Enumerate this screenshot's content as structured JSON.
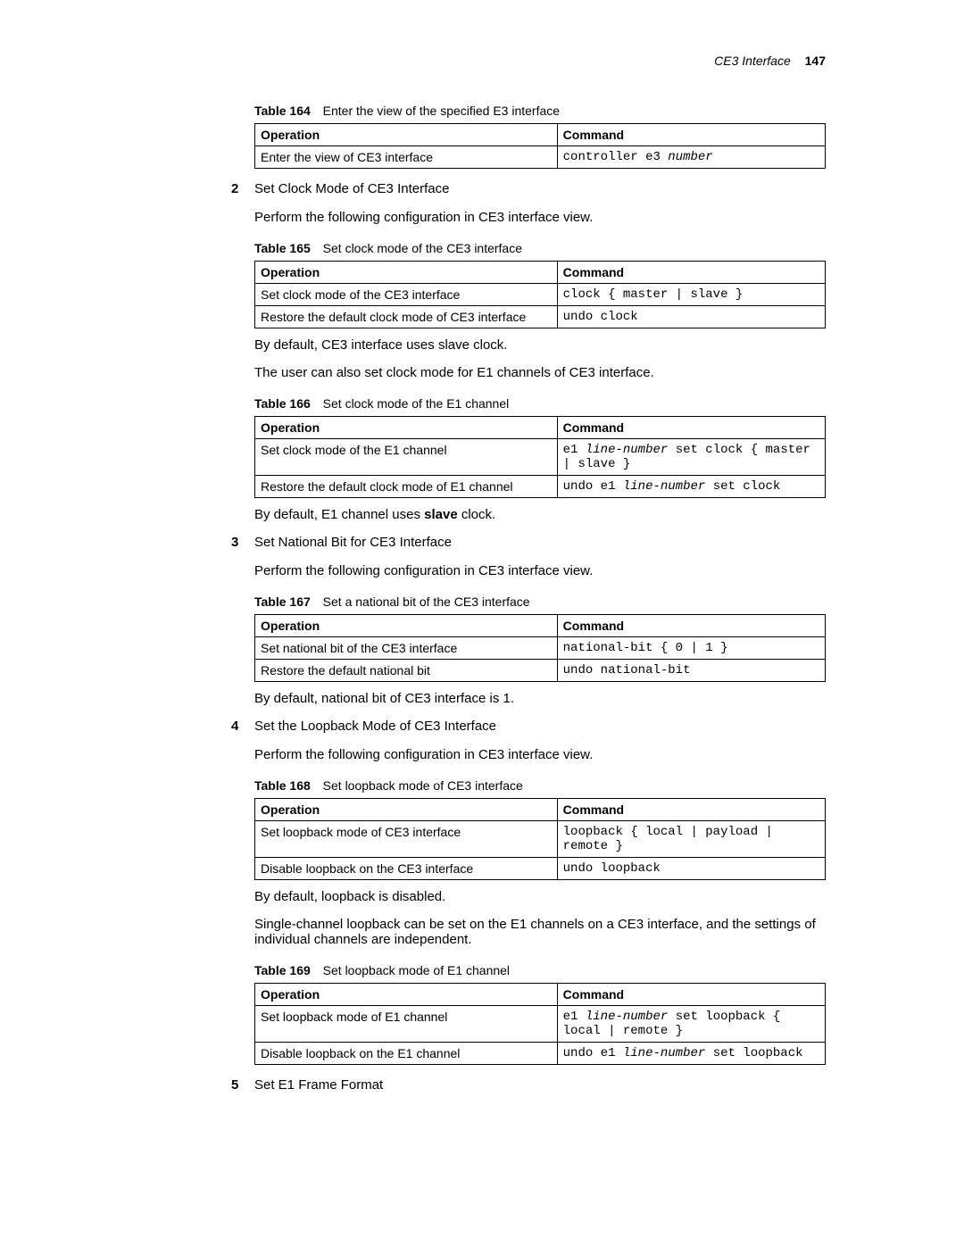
{
  "header": {
    "breadcrumb": "CE3 Interface",
    "pagenum": "147"
  },
  "text_color": "#000000",
  "background_color": "#ffffff",
  "border_color": "#000000",
  "font_sizes": {
    "body": 15,
    "table": 14,
    "caption": 14,
    "header": 14
  },
  "table_col_widths": {
    "operation_pct": 53,
    "command_pct": 47
  },
  "section2": {
    "num": "2",
    "title": "Set Clock Mode of CE3 Interface",
    "intro": "Perform the following configuration in CE3 interface view.",
    "default1": "By default, CE3 interface uses slave clock.",
    "extra": "The user can also set clock mode for E1 channels of CE3 interface.",
    "default2_pre": "By default, E1 channel uses ",
    "default2_bold": "slave",
    "default2_post": " clock."
  },
  "section3": {
    "num": "3",
    "title": "Set National Bit for CE3 Interface",
    "intro": "Perform the following configuration in CE3 interface view.",
    "default": "By default, national bit of CE3 interface is 1."
  },
  "section4": {
    "num": "4",
    "title": "Set the Loopback Mode of CE3 Interface",
    "intro": "Perform the following configuration in CE3 interface view.",
    "default": "By default, loopback is disabled.",
    "extra": "Single-channel loopback can be set on the E1 channels on a CE3 interface, and the settings of individual channels are independent."
  },
  "section5": {
    "num": "5",
    "title": "Set E1 Frame Format"
  },
  "table164": {
    "label": "Table 164",
    "title": "Enter the view of the specified E3 interface",
    "h1": "Operation",
    "h2": "Command",
    "r1c1": "Enter the view of CE3 interface",
    "r1c2a": "controller e3 ",
    "r1c2b": "number"
  },
  "table165": {
    "label": "Table 165",
    "title": "Set clock mode of the CE3 interface",
    "h1": "Operation",
    "h2": "Command",
    "r1c1": "Set clock mode of the CE3 interface",
    "r1c2": "clock { master | slave }",
    "r2c1": "Restore the default clock mode of CE3 interface",
    "r2c2": "undo clock"
  },
  "table166": {
    "label": "Table 166",
    "title": "Set clock mode of the E1 channel",
    "h1": "Operation",
    "h2": "Command",
    "r1c1": "Set clock mode of the E1 channel",
    "r1c2a": "e1 ",
    "r1c2b": "line-number",
    "r1c2c": " set clock { master | slave }",
    "r2c1": "Restore the default clock mode of E1 channel",
    "r2c2a": "undo e1 ",
    "r2c2b": "line-number",
    "r2c2c": " set clock"
  },
  "table167": {
    "label": "Table 167",
    "title": "Set a national bit of the CE3 interface",
    "h1": "Operation",
    "h2": "Command",
    "r1c1": "Set national bit of the CE3 interface",
    "r1c2": "national-bit { 0 | 1 }",
    "r2c1": "Restore the default national bit",
    "r2c2": "undo national-bit"
  },
  "table168": {
    "label": "Table 168",
    "title": "Set loopback mode of CE3 interface",
    "h1": "Operation",
    "h2": "Command",
    "r1c1": "Set loopback mode of CE3 interface",
    "r1c2": "loopback { local | payload | remote }",
    "r2c1": "Disable loopback on the CE3 interface",
    "r2c2": "undo loopback"
  },
  "table169": {
    "label": "Table 169",
    "title": "Set loopback mode of E1 channel",
    "h1": "Operation",
    "h2": "Command",
    "r1c1": "Set loopback mode of E1 channel",
    "r1c2a": "e1 ",
    "r1c2b": "line-number",
    "r1c2c": " set loopback { local | remote }",
    "r2c1": "Disable loopback on the E1 channel",
    "r2c2a": "undo e1 ",
    "r2c2b": "line-number",
    "r2c2c": " set loopback"
  }
}
